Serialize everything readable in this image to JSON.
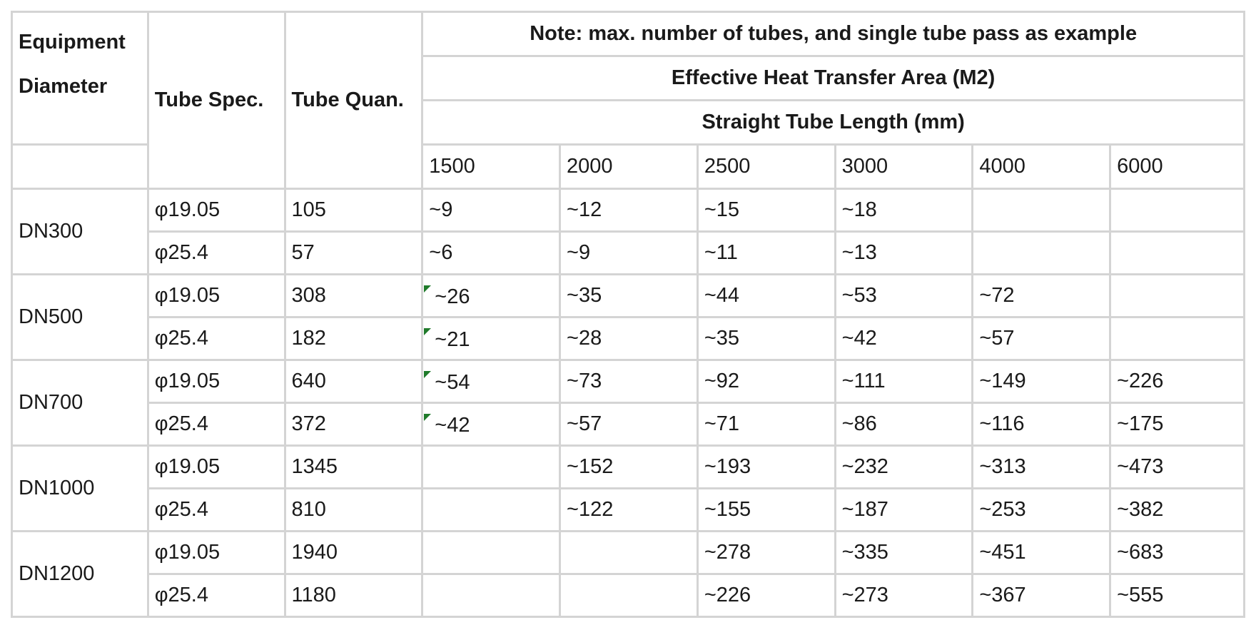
{
  "headers": {
    "equipment_diameter": "Equipment Diameter",
    "tube_spec": "Tube Spec.",
    "tube_quan": "Tube Quan.",
    "note": "Note: max. number of tubes, and single tube pass as example",
    "area": "Effective Heat Transfer Area (M2)",
    "length": "Straight Tube Length (mm)",
    "lengths": [
      "1500",
      "2000",
      "2500",
      "3000",
      "4000",
      "6000"
    ]
  },
  "groups": [
    {
      "diameter": "DN300",
      "rows": [
        {
          "spec": "φ19.05",
          "quan": "105",
          "vals": [
            "~9",
            "~12",
            "~15",
            "~18",
            "",
            ""
          ],
          "flag": false
        },
        {
          "spec": "φ25.4",
          "quan": "57",
          "vals": [
            "~6",
            "~9",
            "~11",
            "~13",
            "",
            ""
          ],
          "flag": false
        }
      ]
    },
    {
      "diameter": "DN500",
      "rows": [
        {
          "spec": "φ19.05",
          "quan": "308",
          "vals": [
            "~26",
            "~35",
            "~44",
            "~53",
            "~72",
            ""
          ],
          "flag": true
        },
        {
          "spec": "φ25.4",
          "quan": "182",
          "vals": [
            "~21",
            "~28",
            "~35",
            "~42",
            "~57",
            ""
          ],
          "flag": true
        }
      ]
    },
    {
      "diameter": "DN700",
      "rows": [
        {
          "spec": "φ19.05",
          "quan": "640",
          "vals": [
            "~54",
            "~73",
            "~92",
            "~111",
            "~149",
            "~226"
          ],
          "flag": true
        },
        {
          "spec": "φ25.4",
          "quan": "372",
          "vals": [
            "~42",
            "~57",
            "~71",
            "~86",
            "~116",
            "~175"
          ],
          "flag": true
        }
      ]
    },
    {
      "diameter": "DN1000",
      "rows": [
        {
          "spec": "φ19.05",
          "quan": "1345",
          "vals": [
            "",
            "~152",
            "~193",
            "~232",
            "~313",
            "~473"
          ],
          "flag": false
        },
        {
          "spec": "φ25.4",
          "quan": "810",
          "vals": [
            "",
            "~122",
            "~155",
            "~187",
            "~253",
            "~382"
          ],
          "flag": false
        }
      ]
    },
    {
      "diameter": "DN1200",
      "rows": [
        {
          "spec": "φ19.05",
          "quan": "1940",
          "vals": [
            "",
            "",
            "~278",
            "~335",
            "~451",
            "~683"
          ],
          "flag": false
        },
        {
          "spec": "φ25.4",
          "quan": "1180",
          "vals": [
            "",
            "",
            "~226",
            "~273",
            "~367",
            "~555"
          ],
          "flag": false
        }
      ]
    }
  ],
  "colors": {
    "border": "#d4d4d4",
    "flag": "#1f7a2a",
    "text": "#1a1a1a"
  }
}
